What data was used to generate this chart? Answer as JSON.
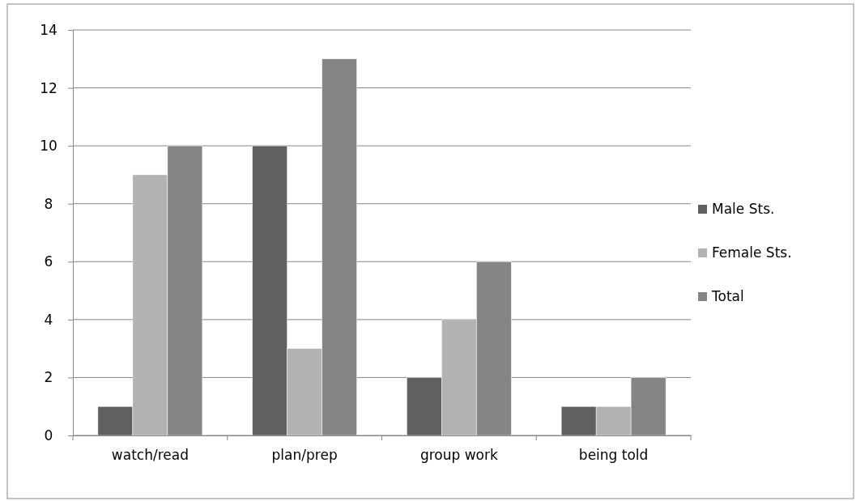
{
  "chart_data": {
    "type": "bar",
    "categories": [
      "watch/read",
      "plan/prep",
      "group work",
      "being told"
    ],
    "series": [
      {
        "name": "Male Sts.",
        "color": "#606060",
        "values": [
          1,
          10,
          2,
          1
        ]
      },
      {
        "name": "Female Sts.",
        "color": "#b2b2b2",
        "values": [
          9,
          3,
          4,
          1
        ]
      },
      {
        "name": "Total",
        "color": "#858585",
        "values": [
          10,
          13,
          6,
          2
        ]
      }
    ],
    "ylim": [
      0,
      14
    ],
    "yticks": [
      0,
      2,
      4,
      6,
      8,
      10,
      12,
      14
    ],
    "grid": "y",
    "legend": "right"
  }
}
